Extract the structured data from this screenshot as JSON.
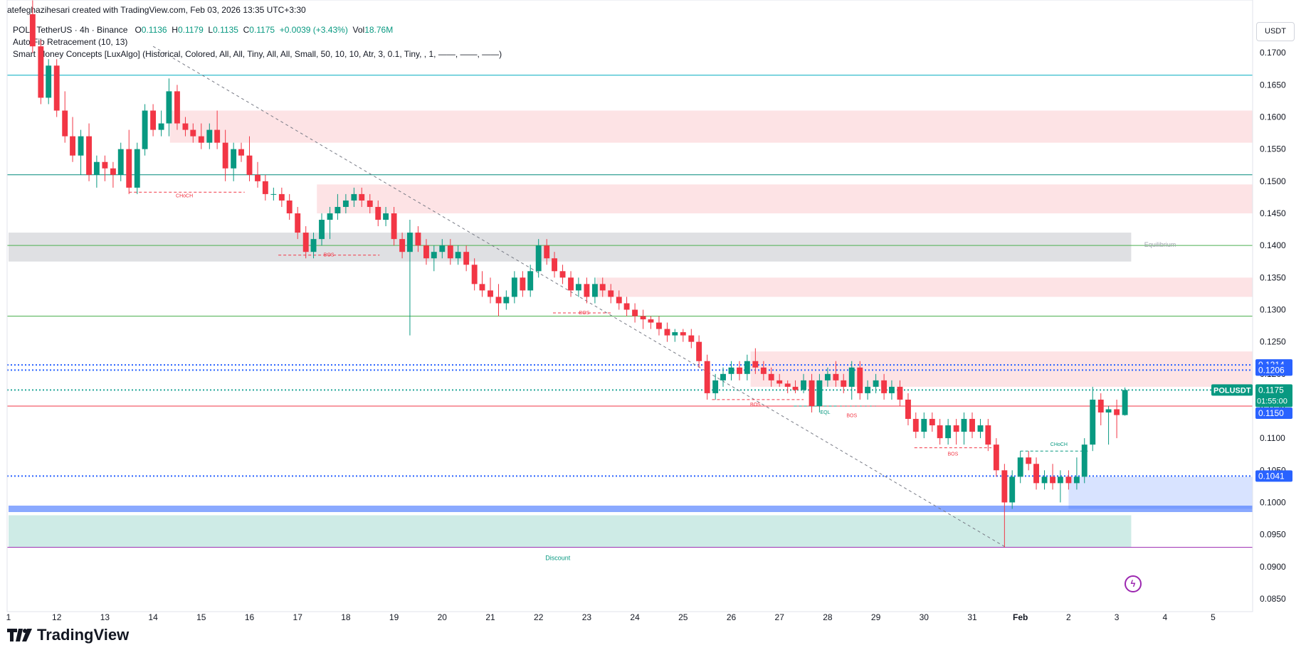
{
  "header": {
    "creator_line": "atefeghazihesari created with TradingView.com, Feb 03, 2026 13:35 UTC+3:30"
  },
  "legend": {
    "symbol_line": "POL / TetherUS · 4h · Binance",
    "o_label": "O",
    "o": "0.1136",
    "h_label": "H",
    "h": "0.1179",
    "l_label": "L",
    "l": "0.1135",
    "c_label": "C",
    "c": "0.1175",
    "change": "+0.0039 (+3.43%)",
    "vol_label": "Vol",
    "vol": "18.76M",
    "indicator1": "Auto Fib Retracement (10, 13)",
    "indicator2": "Smart Money Concepts [LuxAlgo] (Historical, Colored, All, All, Tiny, All, All, Small, 50, 10, 10, Atr, 3, 0.1, Tiny, , 1, ——, ——, ——)"
  },
  "currency": "USDT",
  "brand": {
    "name": "TradingView"
  },
  "colors": {
    "up": "#089981",
    "down": "#f23645",
    "supply_zone": "#f7c4c8",
    "demand_zone": "#b9e3d8",
    "equilibrium": "#d7d8db",
    "fib_blue": "#2962ff",
    "fib_green": "#4caf50",
    "fib_teal": "#00897b"
  },
  "chart_data": {
    "type": "candlestick",
    "title": "POL / TetherUS · 4h · Binance",
    "ylim": [
      0.083,
      0.176
    ],
    "y_ticks": [
      "0.1700",
      "0.1650",
      "0.1600",
      "0.1550",
      "0.1500",
      "0.1450",
      "0.1400",
      "0.1350",
      "0.1300",
      "0.1250",
      "0.1200",
      "0.1150",
      "0.1100",
      "0.1050",
      "0.1000",
      "0.0950",
      "0.0900",
      "0.0850"
    ],
    "x_ticks": [
      {
        "label": "1",
        "x": 0
      },
      {
        "label": "12",
        "x": 1
      },
      {
        "label": "13",
        "x": 2
      },
      {
        "label": "14",
        "x": 3
      },
      {
        "label": "15",
        "x": 4
      },
      {
        "label": "16",
        "x": 5
      },
      {
        "label": "17",
        "x": 6
      },
      {
        "label": "18",
        "x": 7
      },
      {
        "label": "19",
        "x": 8
      },
      {
        "label": "20",
        "x": 9
      },
      {
        "label": "21",
        "x": 10
      },
      {
        "label": "22",
        "x": 11
      },
      {
        "label": "23",
        "x": 12
      },
      {
        "label": "24",
        "x": 13
      },
      {
        "label": "25",
        "x": 14
      },
      {
        "label": "26",
        "x": 15
      },
      {
        "label": "27",
        "x": 16
      },
      {
        "label": "28",
        "x": 17
      },
      {
        "label": "29",
        "x": 18
      },
      {
        "label": "30",
        "x": 19
      },
      {
        "label": "31",
        "x": 20
      },
      {
        "label": "Feb",
        "x": 21
      },
      {
        "label": "2",
        "x": 22
      },
      {
        "label": "3",
        "x": 23
      },
      {
        "label": "4",
        "x": 24
      },
      {
        "label": "5",
        "x": 25
      }
    ],
    "candles": [
      [
        0.5,
        0.176,
        0.179,
        0.17,
        0.171
      ],
      [
        0.67,
        0.171,
        0.172,
        0.162,
        0.163
      ],
      [
        0.83,
        0.163,
        0.169,
        0.162,
        0.168
      ],
      [
        1.0,
        0.168,
        0.169,
        0.16,
        0.161
      ],
      [
        1.17,
        0.161,
        0.164,
        0.156,
        0.157
      ],
      [
        1.33,
        0.157,
        0.16,
        0.153,
        0.154
      ],
      [
        1.5,
        0.154,
        0.158,
        0.151,
        0.157
      ],
      [
        1.67,
        0.157,
        0.159,
        0.15,
        0.151
      ],
      [
        1.83,
        0.151,
        0.154,
        0.149,
        0.153
      ],
      [
        2.0,
        0.153,
        0.154,
        0.15,
        0.152
      ],
      [
        2.17,
        0.152,
        0.153,
        0.149,
        0.151
      ],
      [
        2.33,
        0.151,
        0.156,
        0.15,
        0.155
      ],
      [
        2.5,
        0.155,
        0.158,
        0.148,
        0.149
      ],
      [
        2.67,
        0.149,
        0.156,
        0.148,
        0.155
      ],
      [
        2.83,
        0.155,
        0.162,
        0.154,
        0.161
      ],
      [
        3.0,
        0.161,
        0.162,
        0.157,
        0.158
      ],
      [
        3.17,
        0.158,
        0.161,
        0.157,
        0.159
      ],
      [
        3.33,
        0.159,
        0.166,
        0.157,
        0.164
      ],
      [
        3.5,
        0.164,
        0.165,
        0.158,
        0.159
      ],
      [
        3.67,
        0.159,
        0.16,
        0.157,
        0.158
      ],
      [
        3.83,
        0.158,
        0.159,
        0.156,
        0.157
      ],
      [
        4.0,
        0.157,
        0.159,
        0.155,
        0.156
      ],
      [
        4.17,
        0.156,
        0.159,
        0.155,
        0.158
      ],
      [
        4.33,
        0.158,
        0.161,
        0.155,
        0.156
      ],
      [
        4.5,
        0.156,
        0.158,
        0.15,
        0.152
      ],
      [
        4.67,
        0.152,
        0.156,
        0.15,
        0.155
      ],
      [
        4.83,
        0.155,
        0.156,
        0.153,
        0.154
      ],
      [
        5.0,
        0.154,
        0.157,
        0.15,
        0.151
      ],
      [
        5.17,
        0.151,
        0.153,
        0.149,
        0.15
      ],
      [
        5.33,
        0.15,
        0.151,
        0.147,
        0.148
      ],
      [
        5.5,
        0.148,
        0.149,
        0.147,
        0.148
      ],
      [
        5.67,
        0.148,
        0.149,
        0.146,
        0.147
      ],
      [
        5.83,
        0.147,
        0.148,
        0.144,
        0.145
      ],
      [
        6.0,
        0.145,
        0.146,
        0.141,
        0.142
      ],
      [
        6.17,
        0.142,
        0.143,
        0.138,
        0.139
      ],
      [
        6.33,
        0.139,
        0.142,
        0.138,
        0.141
      ],
      [
        6.5,
        0.141,
        0.145,
        0.14,
        0.144
      ],
      [
        6.67,
        0.144,
        0.146,
        0.141,
        0.145
      ],
      [
        6.83,
        0.145,
        0.148,
        0.144,
        0.146
      ],
      [
        7.0,
        0.146,
        0.148,
        0.145,
        0.147
      ],
      [
        7.17,
        0.147,
        0.149,
        0.146,
        0.148
      ],
      [
        7.33,
        0.148,
        0.149,
        0.146,
        0.147
      ],
      [
        7.5,
        0.147,
        0.148,
        0.145,
        0.146
      ],
      [
        7.67,
        0.146,
        0.147,
        0.143,
        0.144
      ],
      [
        7.83,
        0.144,
        0.146,
        0.143,
        0.145
      ],
      [
        8.0,
        0.145,
        0.146,
        0.14,
        0.141
      ],
      [
        8.17,
        0.141,
        0.142,
        0.138,
        0.139
      ],
      [
        8.33,
        0.139,
        0.144,
        0.126,
        0.142
      ],
      [
        8.5,
        0.142,
        0.143,
        0.139,
        0.14
      ],
      [
        8.67,
        0.14,
        0.141,
        0.137,
        0.138
      ],
      [
        8.83,
        0.138,
        0.14,
        0.136,
        0.139
      ],
      [
        9.0,
        0.139,
        0.141,
        0.138,
        0.14
      ],
      [
        9.17,
        0.14,
        0.141,
        0.137,
        0.138
      ],
      [
        9.33,
        0.138,
        0.14,
        0.137,
        0.139
      ],
      [
        9.5,
        0.139,
        0.14,
        0.136,
        0.137
      ],
      [
        9.67,
        0.137,
        0.138,
        0.133,
        0.134
      ],
      [
        9.83,
        0.134,
        0.136,
        0.132,
        0.133
      ],
      [
        10.0,
        0.133,
        0.135,
        0.131,
        0.132
      ],
      [
        10.17,
        0.132,
        0.134,
        0.129,
        0.131
      ],
      [
        10.33,
        0.131,
        0.133,
        0.13,
        0.132
      ],
      [
        10.5,
        0.132,
        0.136,
        0.131,
        0.135
      ],
      [
        10.67,
        0.135,
        0.136,
        0.132,
        0.133
      ],
      [
        10.83,
        0.133,
        0.137,
        0.132,
        0.136
      ],
      [
        11.0,
        0.136,
        0.141,
        0.135,
        0.14
      ],
      [
        11.17,
        0.14,
        0.141,
        0.137,
        0.138
      ],
      [
        11.33,
        0.138,
        0.139,
        0.135,
        0.136
      ],
      [
        11.5,
        0.136,
        0.137,
        0.134,
        0.135
      ],
      [
        11.67,
        0.135,
        0.136,
        0.132,
        0.133
      ],
      [
        11.83,
        0.133,
        0.135,
        0.132,
        0.134
      ],
      [
        12.0,
        0.134,
        0.135,
        0.131,
        0.132
      ],
      [
        12.17,
        0.132,
        0.135,
        0.131,
        0.134
      ],
      [
        12.33,
        0.134,
        0.135,
        0.132,
        0.133
      ],
      [
        12.5,
        0.133,
        0.134,
        0.131,
        0.132
      ],
      [
        12.67,
        0.132,
        0.133,
        0.13,
        0.131
      ],
      [
        12.83,
        0.131,
        0.132,
        0.129,
        0.13
      ],
      [
        13.0,
        0.13,
        0.131,
        0.128,
        0.129
      ],
      [
        13.17,
        0.129,
        0.13,
        0.127,
        0.1285
      ],
      [
        13.33,
        0.1285,
        0.129,
        0.127,
        0.128
      ],
      [
        13.5,
        0.128,
        0.129,
        0.126,
        0.127
      ],
      [
        13.67,
        0.127,
        0.128,
        0.125,
        0.126
      ],
      [
        13.83,
        0.126,
        0.127,
        0.125,
        0.1265
      ],
      [
        14.0,
        0.1265,
        0.127,
        0.125,
        0.126
      ],
      [
        14.17,
        0.126,
        0.127,
        0.124,
        0.125
      ],
      [
        14.33,
        0.125,
        0.126,
        0.121,
        0.122
      ],
      [
        14.5,
        0.122,
        0.123,
        0.116,
        0.117
      ],
      [
        14.67,
        0.117,
        0.12,
        0.116,
        0.119
      ],
      [
        14.83,
        0.119,
        0.121,
        0.118,
        0.12
      ],
      [
        15.0,
        0.12,
        0.122,
        0.119,
        0.121
      ],
      [
        15.17,
        0.121,
        0.122,
        0.119,
        0.12
      ],
      [
        15.33,
        0.12,
        0.123,
        0.119,
        0.122
      ],
      [
        15.5,
        0.122,
        0.124,
        0.12,
        0.121
      ],
      [
        15.67,
        0.121,
        0.122,
        0.119,
        0.12
      ],
      [
        15.83,
        0.12,
        0.121,
        0.118,
        0.119
      ],
      [
        16.0,
        0.119,
        0.12,
        0.118,
        0.1185
      ],
      [
        16.17,
        0.1185,
        0.119,
        0.117,
        0.118
      ],
      [
        16.33,
        0.118,
        0.119,
        0.117,
        0.1175
      ],
      [
        16.5,
        0.1175,
        0.12,
        0.117,
        0.119
      ],
      [
        16.67,
        0.119,
        0.12,
        0.114,
        0.115
      ],
      [
        16.83,
        0.115,
        0.12,
        0.114,
        0.119
      ],
      [
        17.0,
        0.119,
        0.121,
        0.118,
        0.12
      ],
      [
        17.17,
        0.12,
        0.122,
        0.118,
        0.119
      ],
      [
        17.33,
        0.119,
        0.12,
        0.117,
        0.118
      ],
      [
        17.5,
        0.118,
        0.122,
        0.116,
        0.121
      ],
      [
        17.67,
        0.121,
        0.122,
        0.116,
        0.117
      ],
      [
        17.83,
        0.117,
        0.119,
        0.116,
        0.118
      ],
      [
        18.0,
        0.118,
        0.12,
        0.117,
        0.119
      ],
      [
        18.17,
        0.119,
        0.12,
        0.116,
        0.117
      ],
      [
        18.33,
        0.117,
        0.119,
        0.116,
        0.118
      ],
      [
        18.5,
        0.118,
        0.119,
        0.115,
        0.116
      ],
      [
        18.67,
        0.116,
        0.117,
        0.112,
        0.113
      ],
      [
        18.83,
        0.113,
        0.114,
        0.11,
        0.111
      ],
      [
        19.0,
        0.111,
        0.114,
        0.11,
        0.113
      ],
      [
        19.17,
        0.113,
        0.114,
        0.111,
        0.112
      ],
      [
        19.33,
        0.112,
        0.113,
        0.109,
        0.11
      ],
      [
        19.5,
        0.11,
        0.113,
        0.109,
        0.112
      ],
      [
        19.67,
        0.112,
        0.113,
        0.109,
        0.111
      ],
      [
        19.83,
        0.111,
        0.114,
        0.109,
        0.113
      ],
      [
        20.0,
        0.113,
        0.114,
        0.11,
        0.111
      ],
      [
        20.17,
        0.111,
        0.113,
        0.11,
        0.112
      ],
      [
        20.33,
        0.112,
        0.113,
        0.108,
        0.109
      ],
      [
        20.5,
        0.109,
        0.11,
        0.104,
        0.105
      ],
      [
        20.67,
        0.105,
        0.106,
        0.093,
        0.1
      ],
      [
        20.83,
        0.1,
        0.105,
        0.099,
        0.104
      ],
      [
        21.0,
        0.104,
        0.108,
        0.103,
        0.107
      ],
      [
        21.17,
        0.107,
        0.108,
        0.105,
        0.106
      ],
      [
        21.33,
        0.106,
        0.107,
        0.102,
        0.103
      ],
      [
        21.5,
        0.103,
        0.105,
        0.102,
        0.104
      ],
      [
        21.67,
        0.104,
        0.106,
        0.102,
        0.103
      ],
      [
        21.83,
        0.103,
        0.105,
        0.1,
        0.104
      ],
      [
        22.0,
        0.104,
        0.105,
        0.102,
        0.103
      ],
      [
        22.17,
        0.103,
        0.107,
        0.102,
        0.104
      ],
      [
        22.33,
        0.104,
        0.11,
        0.103,
        0.109
      ],
      [
        22.5,
        0.109,
        0.118,
        0.108,
        0.116
      ],
      [
        22.67,
        0.116,
        0.117,
        0.112,
        0.114
      ],
      [
        22.83,
        0.114,
        0.115,
        0.109,
        0.1145
      ],
      [
        23.0,
        0.1145,
        0.116,
        0.11,
        0.1136
      ],
      [
        23.17,
        0.1136,
        0.1179,
        0.1135,
        0.1175
      ]
    ],
    "price_labels": {
      "symbol": "POLUSDT",
      "last": "0.1175",
      "countdown": "01:55:00",
      "fib_level_a": "0.1214",
      "fib_level_b": "0.1206",
      "fib_level_c": "0.1150",
      "fib_level_d": "0.1041"
    },
    "horizontal_levels": [
      {
        "y": 0.1665,
        "color": "#00acc1",
        "style": "solid"
      },
      {
        "y": 0.151,
        "color": "#00897b",
        "style": "solid"
      },
      {
        "y": 0.14,
        "color": "#4caf50",
        "style": "solid"
      },
      {
        "y": 0.129,
        "color": "#4caf50",
        "style": "solid"
      },
      {
        "y": 0.1214,
        "color": "#2962ff",
        "style": "dotted"
      },
      {
        "y": 0.1206,
        "color": "#2962ff",
        "style": "dotted"
      },
      {
        "y": 0.1175,
        "color": "#26a69a",
        "style": "dotted"
      },
      {
        "y": 0.115,
        "color": "#f23645",
        "style": "solid"
      },
      {
        "y": 0.1041,
        "color": "#2962ff",
        "style": "dotted"
      },
      {
        "y": 0.093,
        "color": "#9c27b0",
        "style": "solid"
      }
    ],
    "zones": [
      {
        "x0": 3.35,
        "x1": 26.0,
        "y0": 0.156,
        "y1": 0.161,
        "type": "supply"
      },
      {
        "x0": 6.4,
        "x1": 26.0,
        "y0": 0.145,
        "y1": 0.1495,
        "type": "supply"
      },
      {
        "x0": 12.2,
        "x1": 26.0,
        "y0": 0.132,
        "y1": 0.135,
        "type": "supply"
      },
      {
        "x0": 15.4,
        "x1": 26.0,
        "y0": 0.118,
        "y1": 0.1235,
        "type": "supply"
      },
      {
        "x0": 0,
        "x1": 23.3,
        "y0": 0.1375,
        "y1": 0.142,
        "type": "equilibrium"
      },
      {
        "x0": 22.0,
        "x1": 26.0,
        "y0": 0.099,
        "y1": 0.104,
        "type": "demand_blue"
      },
      {
        "x0": 0,
        "x1": 26.0,
        "y0": 0.0985,
        "y1": 0.0995,
        "type": "fib_band"
      },
      {
        "x0": 0,
        "x1": 23.3,
        "y0": 0.093,
        "y1": 0.098,
        "type": "discount"
      }
    ],
    "structure_labels": [
      {
        "text": "CHoCH",
        "x": 3.65,
        "y": 0.1475,
        "color": "#f23645",
        "line": [
          2.5,
          4.9,
          0.1483
        ]
      },
      {
        "text": "BOS",
        "x": 6.65,
        "y": 0.1383,
        "color": "#f23645",
        "line": [
          5.6,
          7.7,
          0.1385
        ]
      },
      {
        "text": "BOS",
        "x": 11.95,
        "y": 0.1293,
        "color": "#f23645",
        "line": [
          11.3,
          12.5,
          0.1295
        ]
      },
      {
        "text": "BOS",
        "x": 15.5,
        "y": 0.115,
        "color": "#f23645",
        "line": [
          14.6,
          16.5,
          0.116
        ]
      },
      {
        "text": "EQL",
        "x": 16.95,
        "y": 0.1138,
        "color": "#089981",
        "line": [
          16.3,
          18.0,
          0.115
        ]
      },
      {
        "text": "BOS",
        "x": 17.5,
        "y": 0.1133,
        "color": "#f23645",
        "line": [
          17.2,
          18.5,
          0.115
        ]
      },
      {
        "text": "BOS",
        "x": 19.6,
        "y": 0.1073,
        "color": "#f23645",
        "line": [
          18.8,
          20.4,
          0.1085
        ]
      },
      {
        "text": "CHoCH",
        "x": 21.8,
        "y": 0.1088,
        "color": "#089981",
        "line": [
          21.0,
          22.4,
          0.108
        ]
      },
      {
        "text": "Equilibrium",
        "x": 23.9,
        "y": 0.1398,
        "color": "#9ea3ad",
        "line": null
      },
      {
        "text": "Discount",
        "x": 11.4,
        "y": 0.091,
        "color": "#089981",
        "line": null
      }
    ],
    "trendline": {
      "x0": 3.0,
      "y0": 0.171,
      "x1": 20.7,
      "y1": 0.093
    }
  }
}
